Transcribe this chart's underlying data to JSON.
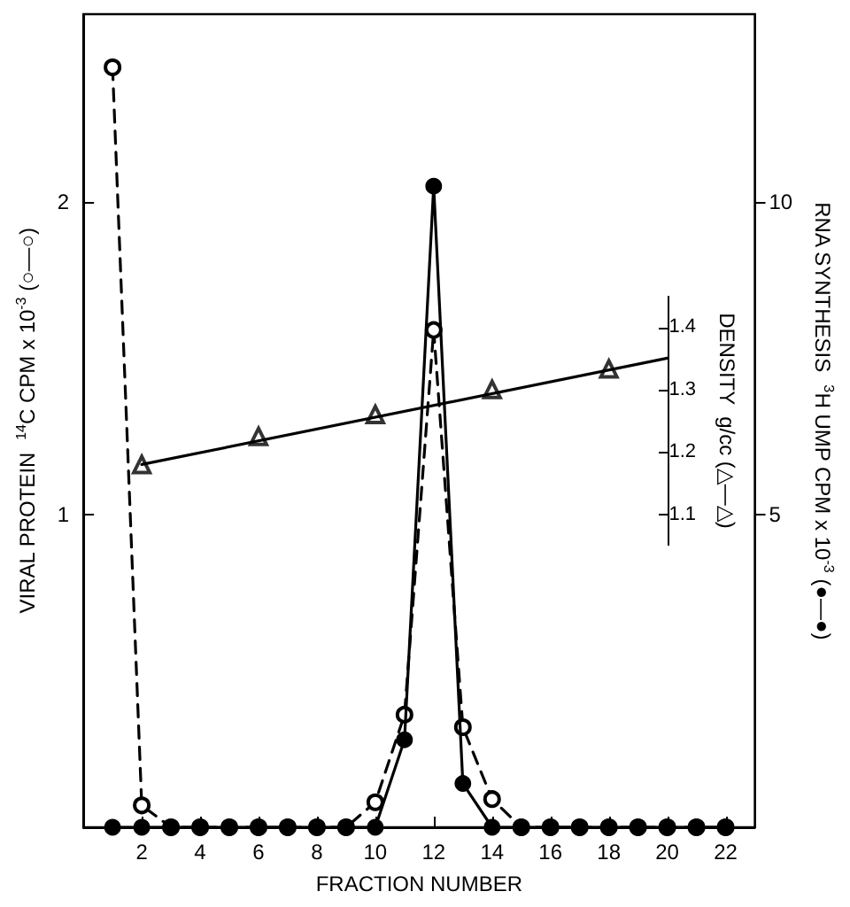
{
  "chart_data": {
    "type": "line",
    "xlabel": "FRACTION NUMBER",
    "ylabel": "VIRAL PROTEIN  $^{14}$C CPM x 10$^{-3}$ (○‒‒○)",
    "y2label": "RNA SYNTHESIS  $^{3}$H UMP CPM x 10$^{-3}$ (●—●)",
    "y3label": "DENSITY  g/cc (△—△)",
    "xlim": [
      0,
      23
    ],
    "xticks": [
      2,
      4,
      6,
      8,
      10,
      12,
      14,
      16,
      18,
      20,
      22
    ],
    "ylim": [
      0,
      2.6
    ],
    "yticks": [
      1,
      2
    ],
    "y2lim": [
      0,
      13
    ],
    "y2ticks": [
      5,
      10
    ],
    "y3lim": [
      0.6,
      1.9
    ],
    "y3ticks": [
      1.1,
      1.2,
      1.3,
      1.4
    ],
    "series": [
      {
        "color": "#000000",
        "marker": "open circle",
        "line_style": "dashed",
        "x": [
          1,
          2,
          3,
          4,
          5,
          6,
          7,
          8,
          9,
          10,
          11,
          12,
          13,
          14,
          15,
          16,
          17,
          18,
          19,
          20,
          21,
          22
        ],
        "values": [
          2.43,
          0.07,
          0,
          0,
          0,
          0,
          0,
          0,
          0,
          0.08,
          0.36,
          1.59,
          0.32,
          0.09,
          0,
          0,
          0,
          0,
          0,
          0,
          0,
          0
        ]
      },
      {
        "color": "#000000",
        "marker": "circle",
        "line_style": "solid",
        "axis": "y2",
        "x": [
          1,
          2,
          3,
          4,
          5,
          6,
          7,
          8,
          9,
          10,
          11,
          12,
          13,
          14,
          15,
          16,
          17,
          18,
          19,
          20,
          21,
          22
        ],
        "values": [
          0,
          0,
          0,
          0,
          0,
          0,
          0,
          0,
          0,
          0,
          1.4,
          10.25,
          0.7,
          0,
          0,
          0,
          0,
          0,
          0,
          0,
          0,
          0
        ]
      },
      {
        "type": "scatter",
        "color": "#000000",
        "marker": "triangle",
        "axis": "y3",
        "x": [
          2,
          6,
          10,
          14,
          18
        ],
        "values": [
          1.18,
          1.225,
          1.26,
          1.3,
          1.333
        ]
      },
      {
        "type": "line",
        "color": "#000000",
        "marker": "none",
        "line_style": "solid",
        "axis": "y3",
        "x": [
          2,
          20
        ],
        "values": [
          1.18,
          1.35
        ]
      }
    ]
  }
}
